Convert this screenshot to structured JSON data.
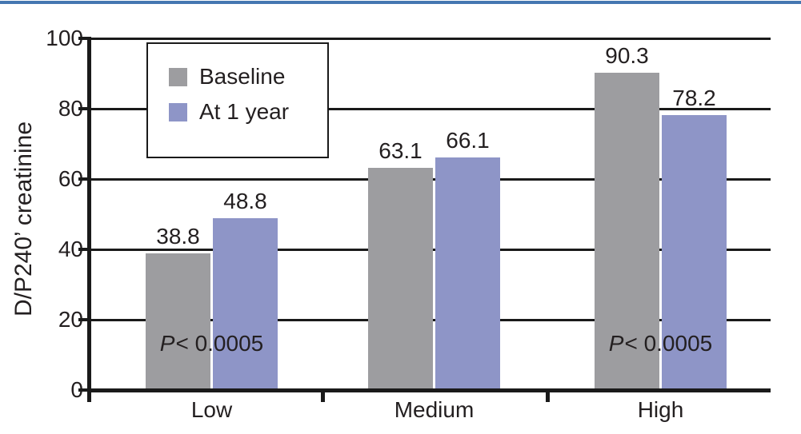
{
  "page": {
    "top_border_color": "#4577b1",
    "background_color": "#ffffff"
  },
  "colors": {
    "axis": "#1a1a1a",
    "text": "#231f20",
    "gridline": "#1a1a1a"
  },
  "chart_data": {
    "type": "bar",
    "title": "",
    "xlabel": "",
    "ylabel": "D/P240’ creatinine",
    "categories": [
      "Low",
      "Medium",
      "High"
    ],
    "series": [
      {
        "name": "Baseline",
        "color": "#9d9da0",
        "values": [
          38.8,
          63.1,
          90.3
        ]
      },
      {
        "name": "At 1 year",
        "color": "#8e95c7",
        "values": [
          48.8,
          66.1,
          78.2
        ]
      }
    ],
    "value_labels": [
      "38.8",
      "48.8",
      "63.1",
      "66.1",
      "90.3",
      "78.2"
    ],
    "ylim": [
      0,
      100
    ],
    "yticks": [
      0,
      20,
      40,
      60,
      80,
      100
    ],
    "grid": true,
    "legend_position": "top-left",
    "annotations": [
      {
        "italic": "P",
        "text": "< 0.0005",
        "category_index": 0
      },
      {
        "italic": "P",
        "text": "< 0.0005",
        "category_index": 2
      }
    ]
  }
}
